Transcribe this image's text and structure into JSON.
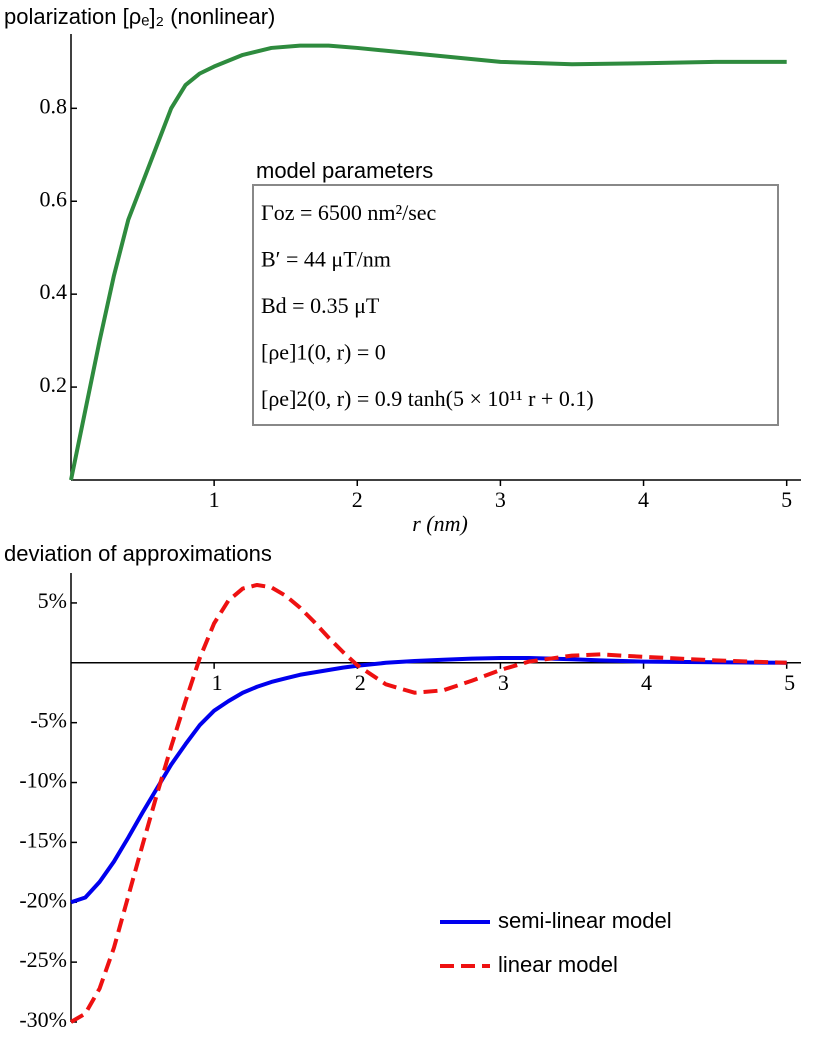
{
  "chart_data": [
    {
      "type": "line",
      "title": "polarization [ρₑ]₂ (nonlinear)",
      "x_label": "r (nm)",
      "x": [
        0,
        0.1,
        0.2,
        0.3,
        0.4,
        0.5,
        0.6,
        0.7,
        0.8,
        0.9,
        1,
        1.2,
        1.4,
        1.6,
        1.8,
        2,
        2.5,
        3,
        3.5,
        4,
        4.5,
        5
      ],
      "series": [
        {
          "color": "#2e8b3e",
          "line_style": "solid",
          "values": [
            0,
            0.15,
            0.3,
            0.44,
            0.56,
            0.64,
            0.72,
            0.8,
            0.85,
            0.875,
            0.89,
            0.915,
            0.93,
            0.935,
            0.935,
            0.93,
            0.915,
            0.9,
            0.895,
            0.897,
            0.9,
            0.9
          ]
        }
      ],
      "xlim": [
        0,
        5.1
      ],
      "ylim": [
        0,
        0.96
      ],
      "xticks": [
        1,
        2,
        3,
        4,
        5
      ],
      "yticks": [
        0.2,
        0.4,
        0.6,
        0.8
      ],
      "annotation": {
        "title": "model parameters",
        "lines": [
          "Γoz = 6500 nm²/sec",
          "B′ = 44 μT/nm",
          "Bd = 0.35 μT",
          "[ρe]1(0, r) = 0",
          "[ρe]2(0, r) = 0.9 tanh(5 × 10¹¹ r + 0.1)"
        ]
      }
    },
    {
      "type": "line",
      "title": "deviation of approximations",
      "x": [
        0,
        0.1,
        0.2,
        0.3,
        0.4,
        0.5,
        0.6,
        0.7,
        0.8,
        0.9,
        1,
        1.1,
        1.2,
        1.3,
        1.4,
        1.5,
        1.6,
        1.7,
        1.8,
        1.9,
        2,
        2.2,
        2.4,
        2.6,
        2.8,
        3,
        3.2,
        3.5,
        3.7,
        4,
        4.5,
        5
      ],
      "series": [
        {
          "name": "semi-linear model",
          "color": "#0000ee",
          "line_style": "solid",
          "values": [
            -20,
            -19.6,
            -18.3,
            -16.6,
            -14.6,
            -12.5,
            -10.5,
            -8.5,
            -6.8,
            -5.2,
            -4,
            -3.2,
            -2.5,
            -2,
            -1.6,
            -1.3,
            -1,
            -0.8,
            -0.6,
            -0.4,
            -0.25,
            0,
            0.15,
            0.25,
            0.35,
            0.4,
            0.4,
            0.3,
            0.2,
            0.1,
            0.05,
            0
          ]
        },
        {
          "name": "linear model",
          "color": "#ee1111",
          "line_style": "dashed",
          "values": [
            -30,
            -29.3,
            -27.2,
            -23.8,
            -19.5,
            -15.2,
            -11,
            -7,
            -3.2,
            0.4,
            3.3,
            5.2,
            6.2,
            6.5,
            6.3,
            5.6,
            4.6,
            3.4,
            2.1,
            0.9,
            -0.2,
            -1.8,
            -2.5,
            -2.3,
            -1.5,
            -0.6,
            0.1,
            0.6,
            0.7,
            0.5,
            0.2,
            0
          ]
        }
      ],
      "xlim": [
        0,
        5.1
      ],
      "ylim": [
        -30,
        7.5
      ],
      "xticks": [
        1,
        2,
        3,
        4,
        5
      ],
      "yticks": [
        {
          "value": 5,
          "label": "5%"
        },
        {
          "value": -5,
          "label": "-5%"
        },
        {
          "value": -10,
          "label": "-10%"
        },
        {
          "value": -15,
          "label": "-15%"
        },
        {
          "value": -20,
          "label": "-20%"
        },
        {
          "value": -25,
          "label": "-25%"
        },
        {
          "value": -30,
          "label": "-30%"
        }
      ],
      "legend_position": "lower right"
    }
  ]
}
